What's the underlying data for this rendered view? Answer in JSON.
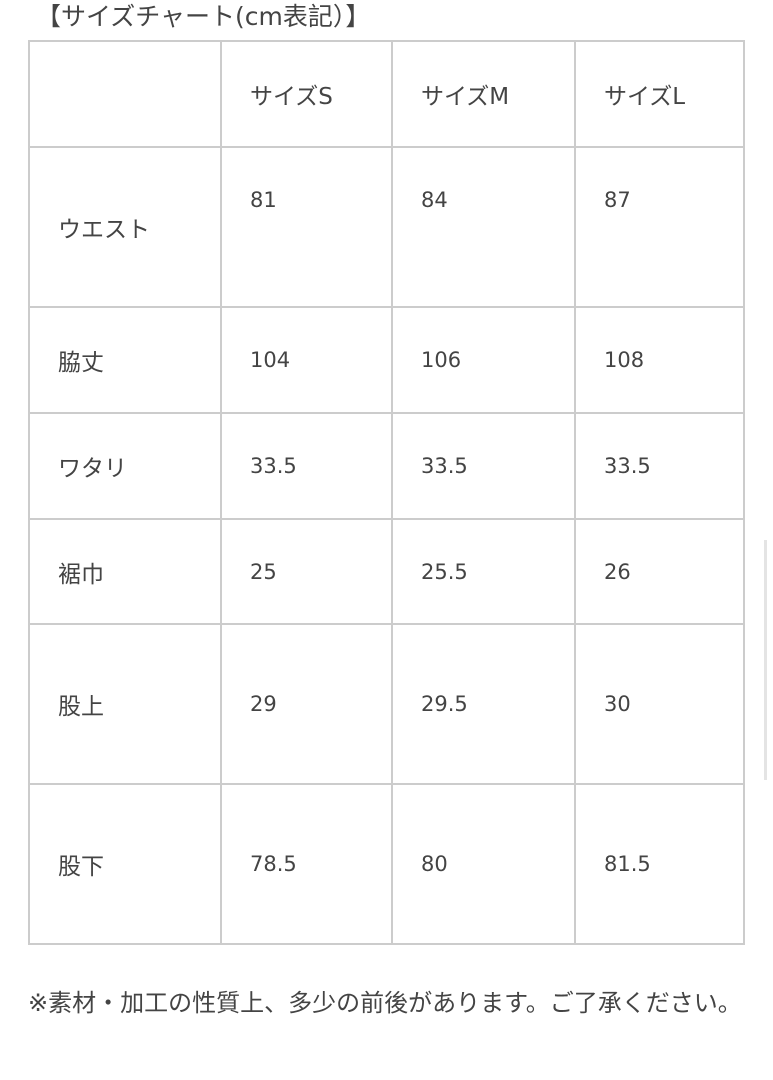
{
  "title": "【サイズチャート(cm表記）】",
  "table": {
    "headers": [
      "",
      "サイズS",
      "サイズM",
      "サイズL"
    ],
    "rows": [
      {
        "label": "ウエスト",
        "values": [
          "81",
          "84",
          "87"
        ]
      },
      {
        "label": "脇丈",
        "values": [
          "104",
          "106",
          "108"
        ]
      },
      {
        "label": "ワタリ",
        "values": [
          "33.5",
          "33.5",
          "33.5"
        ]
      },
      {
        "label": "裾巾",
        "values": [
          "25",
          "25.5",
          "26"
        ]
      },
      {
        "label": "股上",
        "values": [
          "29",
          "29.5",
          "30"
        ]
      },
      {
        "label": "股下",
        "values": [
          "78.5",
          "80",
          "81.5"
        ]
      }
    ]
  },
  "note": "※素材・加工の性質上、多少の前後があります。ご了承ください。"
}
